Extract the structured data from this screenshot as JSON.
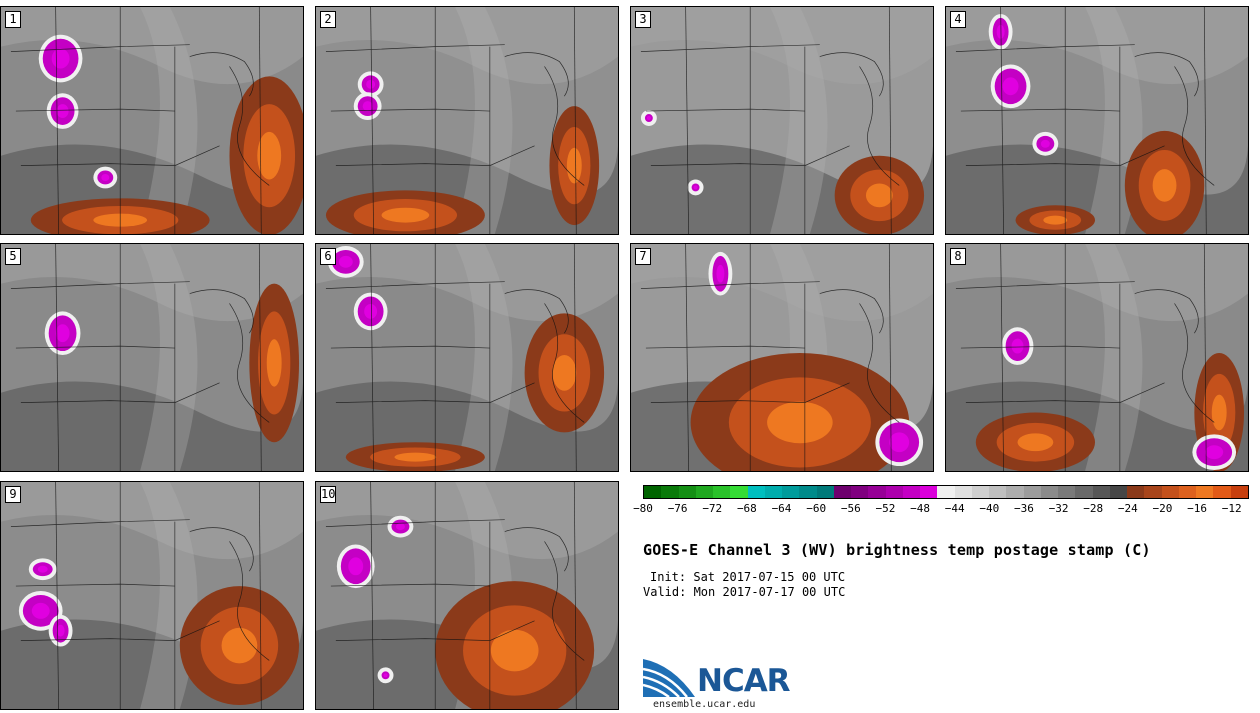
{
  "panels": [
    {
      "label": "1"
    },
    {
      "label": "2"
    },
    {
      "label": "3"
    },
    {
      "label": "4"
    },
    {
      "label": "5"
    },
    {
      "label": "6"
    },
    {
      "label": "7"
    },
    {
      "label": "8"
    },
    {
      "label": "9"
    },
    {
      "label": "10"
    }
  ],
  "colorbar": {
    "colors": [
      "#006400",
      "#0a7a0a",
      "#148f14",
      "#1fa81f",
      "#2ac22a",
      "#35dc35",
      "#00bfbf",
      "#00adad",
      "#009c9c",
      "#008b8b",
      "#007a7a",
      "#6e006e",
      "#800080",
      "#970097",
      "#ad00ad",
      "#c400c4",
      "#db00db",
      "#f0f0f0",
      "#e0e0e0",
      "#cfcfcf",
      "#bfbfbf",
      "#adadad",
      "#9c9c9c",
      "#8b8b8b",
      "#7a7a7a",
      "#696969",
      "#575757",
      "#464646",
      "#8b3a1a",
      "#a8451b",
      "#c4511c",
      "#dd611e",
      "#ee7821",
      "#e25a17",
      "#c73f0e"
    ],
    "ticks": [
      "−80",
      "−76",
      "−72",
      "−68",
      "−64",
      "−60",
      "−56",
      "−52",
      "−48",
      "−44",
      "−40",
      "−36",
      "−32",
      "−28",
      "−24",
      "−20",
      "−16",
      "−12"
    ]
  },
  "title": "GOES-E Channel 3 (WV) brightness temp postage stamp (C)",
  "init": "Init: Sat 2017-07-15 00 UTC",
  "valid": "Valid: Mon 2017-07-17 00 UTC",
  "logo_text": "NCAR",
  "url": "ensemble.ucar.edu"
}
